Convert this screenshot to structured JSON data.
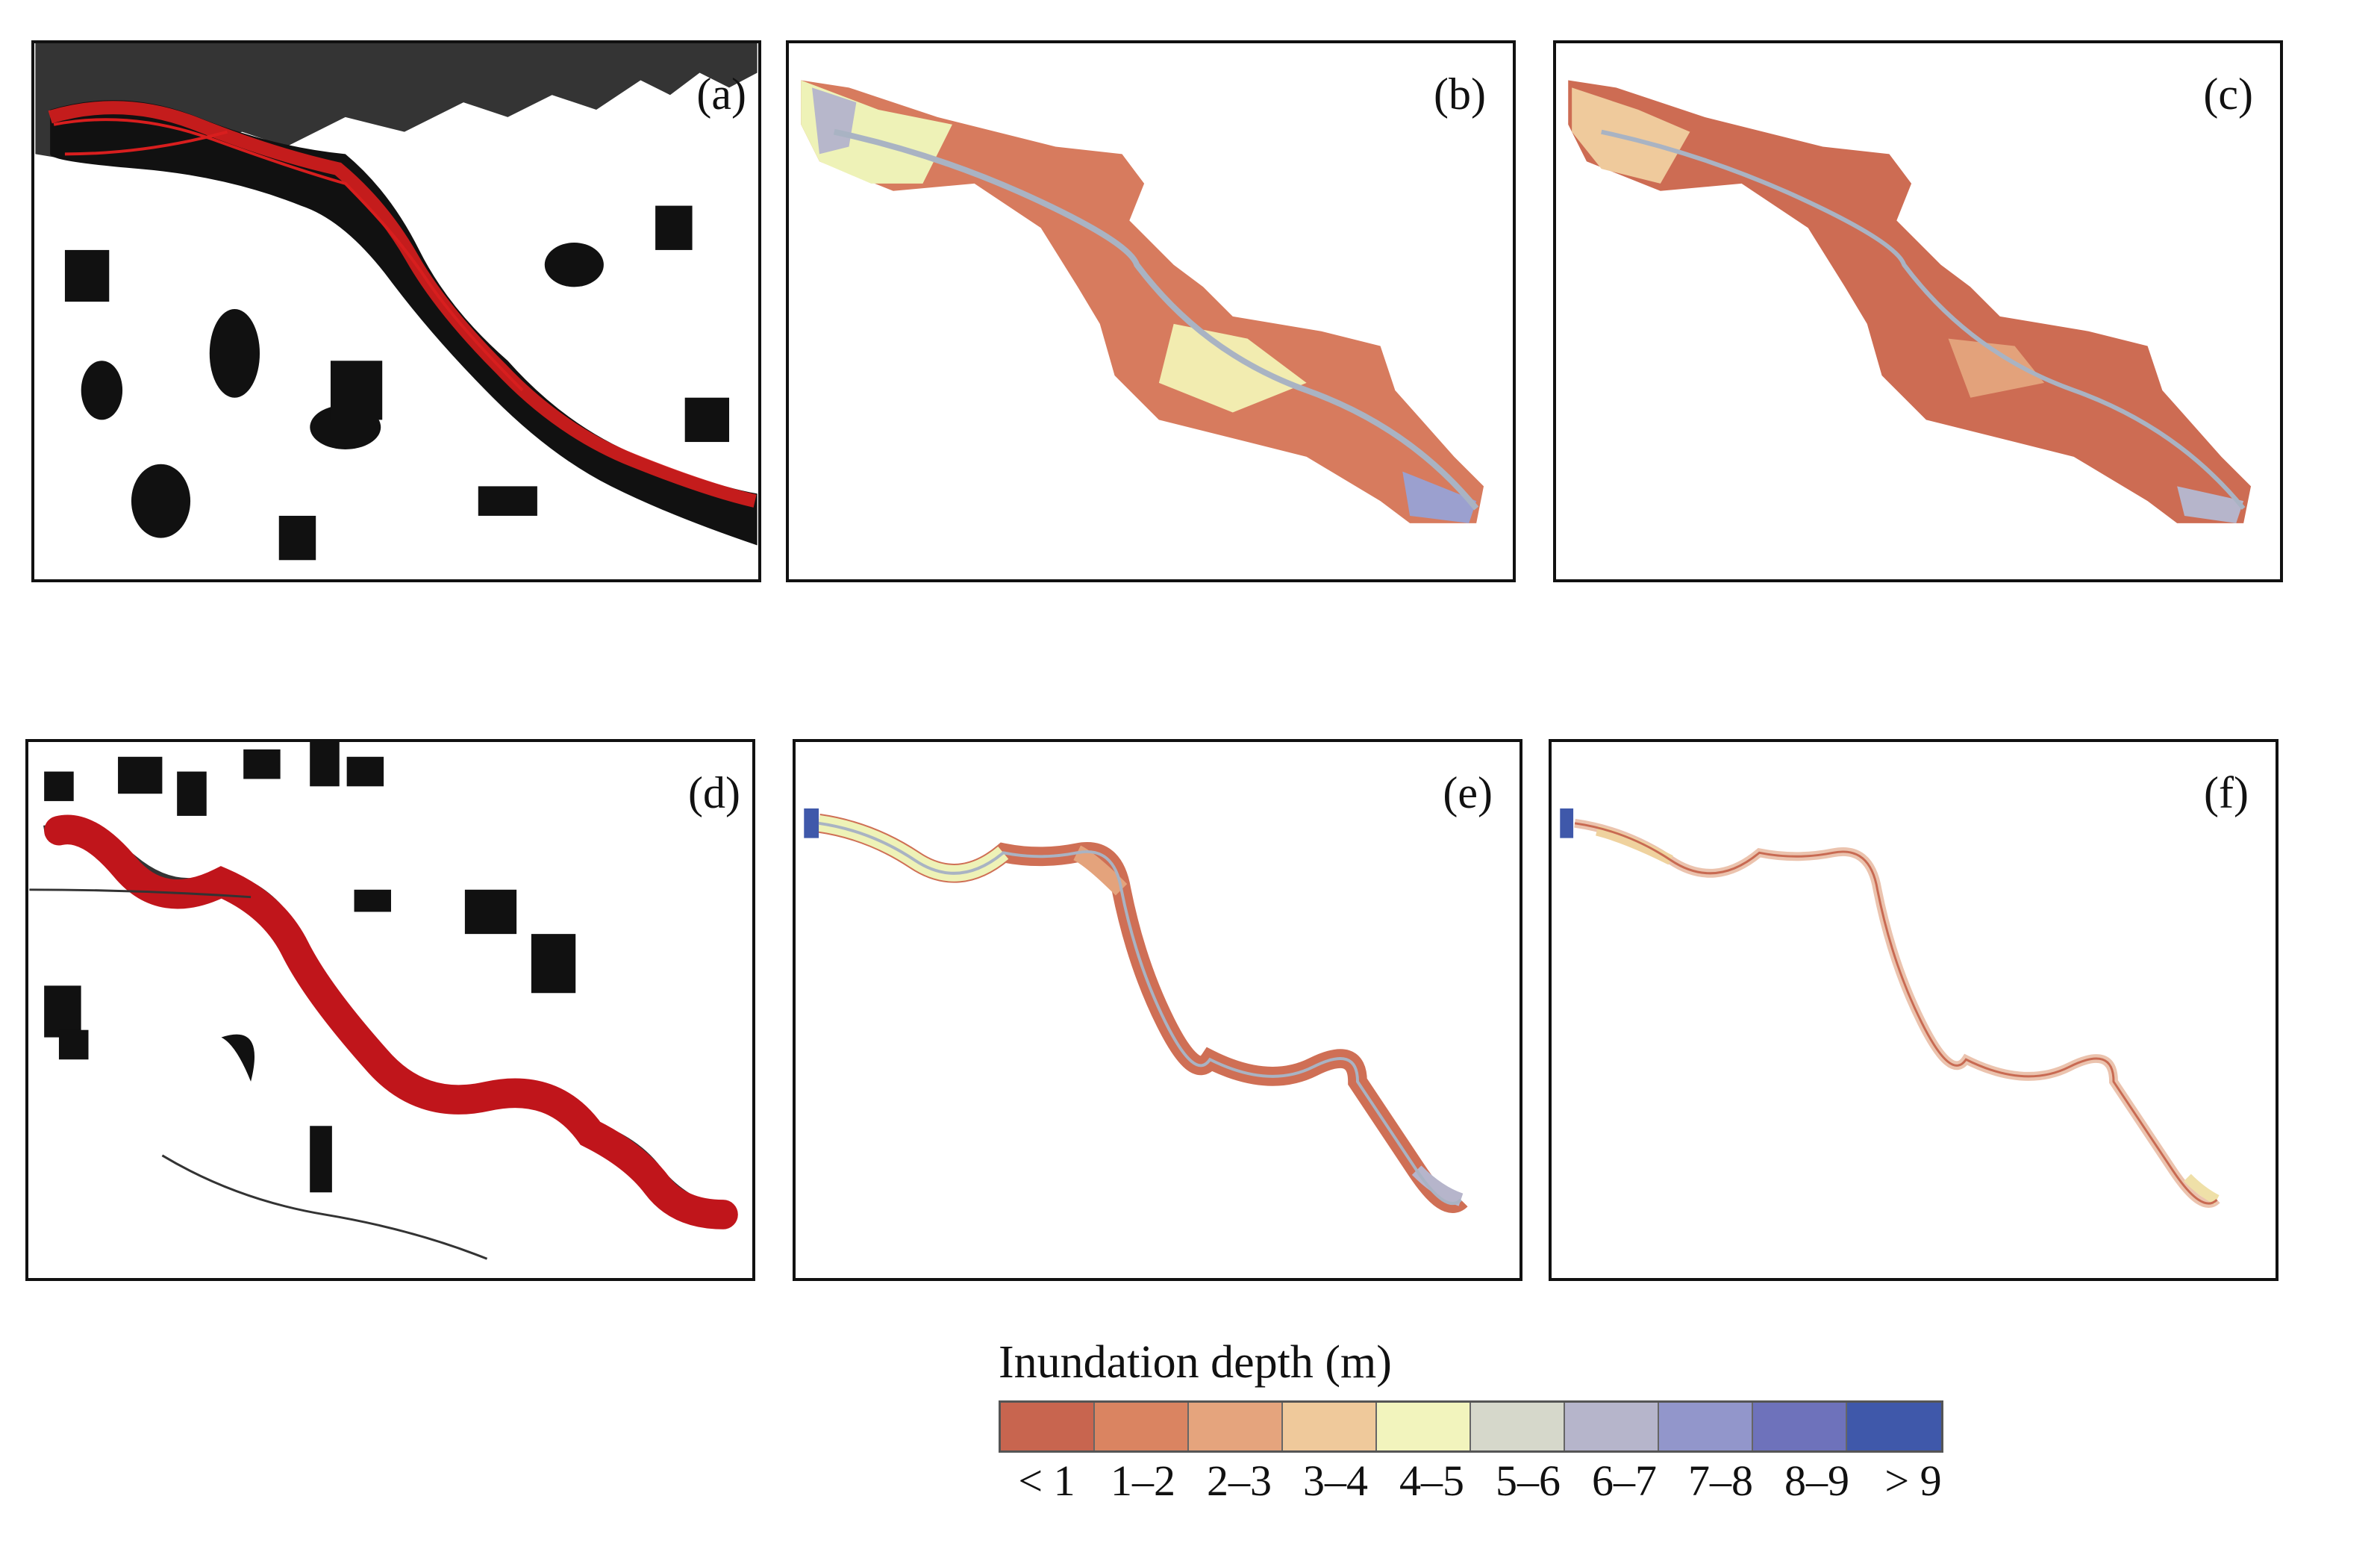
{
  "panels": [
    {
      "id": "a",
      "label": "(a)",
      "kind": "binary"
    },
    {
      "id": "b",
      "label": "(b)",
      "kind": "depth-wide"
    },
    {
      "id": "c",
      "label": "(c)",
      "kind": "depth-wide"
    },
    {
      "id": "d",
      "label": "(d)",
      "kind": "binary"
    },
    {
      "id": "e",
      "label": "(e)",
      "kind": "depth-narrow"
    },
    {
      "id": "f",
      "label": "(f)",
      "kind": "depth-narrow"
    }
  ],
  "legend": {
    "title": "Inundation depth (m)",
    "classes": [
      {
        "label": "< 1",
        "color": "#c8654f"
      },
      {
        "label": "1–2",
        "color": "#da8461"
      },
      {
        "label": "2–3",
        "color": "#e5a47d"
      },
      {
        "label": "3–4",
        "color": "#efc99b"
      },
      {
        "label": "4–5",
        "color": "#f2f4bd"
      },
      {
        "label": "5–6",
        "color": "#d6d8cb"
      },
      {
        "label": "6–7",
        "color": "#b6b5cb"
      },
      {
        "label": "7–8",
        "color": "#9296cb"
      },
      {
        "label": "8–9",
        "color": "#6e72bb"
      },
      {
        "label": "> 9",
        "color": "#3f58aa"
      }
    ]
  },
  "colors": {
    "water_mask": "#111111",
    "flood_outline": "#d81e1e",
    "river_line": "#a9b3c3"
  }
}
